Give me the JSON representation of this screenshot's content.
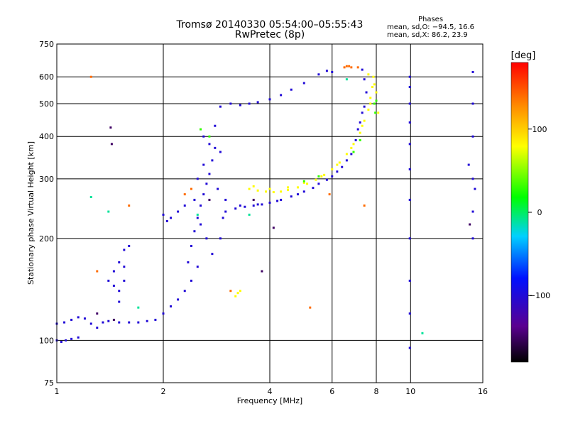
{
  "chart_data": {
    "type": "scatter",
    "title": "Tromsø 20140330 05:54:00–05:55:43",
    "subtitle": "RwPretec (8p)",
    "xlabel": "Frequency [MHz]",
    "ylabel": "Stationary phase Virtual Height [km]",
    "x_scale": "log",
    "y_scale": "log",
    "xlim": [
      1,
      16
    ],
    "ylim": [
      75,
      750
    ],
    "x_ticks": [
      1,
      2,
      4,
      6,
      8,
      10,
      16
    ],
    "x_tick_labels": [
      "1",
      "2",
      "4",
      "6",
      "8",
      "10",
      "16"
    ],
    "y_ticks": [
      75,
      100,
      200,
      300,
      400,
      500,
      600,
      750
    ],
    "y_tick_labels": [
      "75",
      "100",
      "200",
      "300",
      "400",
      "500",
      "600",
      "750"
    ],
    "grid": true,
    "phase_stats": {
      "heading": "Phases",
      "line_o": "mean, sd,O: −94.5, 16.6",
      "line_x": "mean, sd,X:  86.2, 23.9"
    },
    "colorbar": {
      "label": "[deg]",
      "range": [
        -180,
        180
      ],
      "ticks": [
        100,
        0,
        -100
      ],
      "tick_labels": [
        "100",
        "0",
        "−100"
      ]
    },
    "series": [
      {
        "phase_deg": -100,
        "points": [
          [
            1.0,
            100
          ],
          [
            1.03,
            99
          ],
          [
            1.06,
            100
          ],
          [
            1.1,
            101
          ],
          [
            1.15,
            102
          ],
          [
            1.0,
            112
          ],
          [
            1.05,
            113
          ],
          [
            1.1,
            115
          ],
          [
            1.15,
            117
          ],
          [
            1.2,
            116
          ],
          [
            1.25,
            112
          ],
          [
            1.3,
            109
          ],
          [
            1.35,
            113
          ],
          [
            1.4,
            114
          ],
          [
            1.5,
            113
          ],
          [
            1.6,
            113
          ],
          [
            1.7,
            113
          ],
          [
            1.8,
            114
          ],
          [
            1.9,
            115
          ],
          [
            2.0,
            120
          ],
          [
            2.1,
            126
          ],
          [
            2.2,
            132
          ],
          [
            2.3,
            140
          ],
          [
            2.4,
            150
          ],
          [
            2.5,
            165
          ],
          [
            2.35,
            170
          ],
          [
            2.4,
            190
          ],
          [
            2.45,
            210
          ],
          [
            2.5,
            230
          ],
          [
            2.55,
            250
          ],
          [
            2.6,
            270
          ],
          [
            2.65,
            290
          ],
          [
            2.7,
            310
          ],
          [
            2.75,
            340
          ],
          [
            2.8,
            370
          ],
          [
            2.5,
            300
          ],
          [
            2.6,
            330
          ],
          [
            2.7,
            380
          ],
          [
            2.6,
            400
          ],
          [
            2.45,
            260
          ],
          [
            2.55,
            220
          ],
          [
            2.65,
            200
          ],
          [
            2.75,
            180
          ],
          [
            2.9,
            200
          ],
          [
            2.95,
            230
          ],
          [
            3.0,
            260
          ],
          [
            2.85,
            280
          ],
          [
            2.9,
            360
          ],
          [
            2.8,
            430
          ],
          [
            2.3,
            250
          ],
          [
            2.2,
            240
          ],
          [
            2.1,
            230
          ],
          [
            2.0,
            235
          ],
          [
            2.05,
            225
          ],
          [
            1.4,
            150
          ],
          [
            1.45,
            160
          ],
          [
            1.5,
            170
          ],
          [
            1.55,
            165
          ],
          [
            1.5,
            140
          ],
          [
            1.55,
            150
          ],
          [
            1.45,
            145
          ],
          [
            1.5,
            130
          ],
          [
            1.55,
            185
          ],
          [
            1.6,
            190
          ],
          [
            2.9,
            490
          ],
          [
            3.1,
            500
          ],
          [
            3.3,
            495
          ],
          [
            3.5,
            500
          ],
          [
            3.7,
            505
          ],
          [
            4.0,
            515
          ],
          [
            4.3,
            530
          ],
          [
            4.6,
            550
          ],
          [
            5.0,
            575
          ],
          [
            5.5,
            610
          ],
          [
            5.8,
            625
          ],
          [
            6.0,
            620
          ],
          [
            3.0,
            240
          ],
          [
            3.2,
            245
          ],
          [
            3.4,
            248
          ],
          [
            3.6,
            250
          ],
          [
            3.8,
            252
          ],
          [
            4.0,
            255
          ],
          [
            4.3,
            260
          ],
          [
            4.6,
            266
          ],
          [
            5.0,
            275
          ],
          [
            5.5,
            290
          ],
          [
            6.0,
            305
          ],
          [
            6.4,
            325
          ],
          [
            6.8,
            355
          ],
          [
            7.0,
            390
          ],
          [
            7.2,
            440
          ],
          [
            7.4,
            490
          ],
          [
            7.5,
            540
          ],
          [
            7.4,
            590
          ],
          [
            7.3,
            630
          ],
          [
            3.3,
            250
          ],
          [
            3.7,
            252
          ],
          [
            4.2,
            258
          ],
          [
            4.8,
            270
          ],
          [
            5.3,
            282
          ],
          [
            5.8,
            298
          ],
          [
            6.2,
            315
          ],
          [
            6.6,
            340
          ],
          [
            7.1,
            420
          ],
          [
            7.3,
            470
          ],
          [
            9.95,
            600
          ],
          [
            9.95,
            560
          ],
          [
            9.95,
            500
          ],
          [
            9.95,
            440
          ],
          [
            9.95,
            380
          ],
          [
            9.95,
            320
          ],
          [
            9.95,
            260
          ],
          [
            9.95,
            200
          ],
          [
            9.95,
            150
          ],
          [
            9.95,
            120
          ],
          [
            9.95,
            95
          ],
          [
            15.0,
            620
          ],
          [
            15.0,
            500
          ],
          [
            15.0,
            400
          ],
          [
            15.0,
            300
          ],
          [
            15.0,
            240
          ],
          [
            15.0,
            200
          ],
          [
            15.2,
            280
          ],
          [
            14.6,
            330
          ]
        ]
      },
      {
        "phase_deg": 80,
        "points": [
          [
            3.5,
            280
          ],
          [
            3.7,
            277
          ],
          [
            3.9,
            275
          ],
          [
            4.1,
            274
          ],
          [
            4.3,
            275
          ],
          [
            4.5,
            278
          ],
          [
            4.8,
            283
          ],
          [
            5.1,
            290
          ],
          [
            5.4,
            298
          ],
          [
            5.7,
            308
          ],
          [
            6.0,
            320
          ],
          [
            6.3,
            335
          ],
          [
            6.6,
            355
          ],
          [
            6.9,
            380
          ],
          [
            7.2,
            410
          ],
          [
            7.4,
            445
          ],
          [
            7.6,
            480
          ],
          [
            7.7,
            520
          ],
          [
            7.8,
            560
          ],
          [
            7.85,
            600
          ],
          [
            7.6,
            610
          ],
          [
            3.6,
            285
          ],
          [
            4.0,
            280
          ],
          [
            4.5,
            283
          ],
          [
            5.0,
            292
          ],
          [
            5.6,
            305
          ],
          [
            6.2,
            330
          ],
          [
            6.8,
            370
          ],
          [
            7.3,
            430
          ],
          [
            7.7,
            500
          ],
          [
            8.1,
            470
          ],
          [
            8.0,
            540
          ],
          [
            7.9,
            570
          ],
          [
            3.2,
            135
          ],
          [
            3.25,
            138
          ],
          [
            3.3,
            140
          ]
        ]
      },
      {
        "phase_deg": 140,
        "points": [
          [
            6.5,
            640
          ],
          [
            6.6,
            645
          ],
          [
            6.7,
            645
          ],
          [
            6.8,
            640
          ],
          [
            7.1,
            640
          ],
          [
            1.25,
            600
          ],
          [
            1.3,
            160
          ],
          [
            1.6,
            250
          ],
          [
            2.3,
            270
          ],
          [
            2.4,
            280
          ],
          [
            3.1,
            140
          ],
          [
            5.2,
            125
          ],
          [
            5.9,
            270
          ],
          [
            7.4,
            250
          ]
        ]
      },
      {
        "phase_deg": 30,
        "points": [
          [
            7.9,
            500
          ],
          [
            8.0,
            510
          ],
          [
            7.95,
            470
          ],
          [
            7.2,
            390
          ],
          [
            6.9,
            360
          ],
          [
            5.0,
            295
          ],
          [
            5.5,
            305
          ],
          [
            2.55,
            420
          ],
          [
            2.7,
            400
          ]
        ]
      },
      {
        "phase_deg": -10,
        "points": [
          [
            1.7,
            125
          ],
          [
            1.4,
            240
          ],
          [
            2.5,
            235
          ],
          [
            3.5,
            235
          ],
          [
            6.6,
            590
          ],
          [
            10.8,
            105
          ],
          [
            1.25,
            265
          ]
        ]
      },
      {
        "phase_deg": -150,
        "points": [
          [
            1.3,
            120
          ],
          [
            1.45,
            115
          ],
          [
            2.7,
            260
          ],
          [
            3.6,
            260
          ],
          [
            4.1,
            215
          ],
          [
            3.8,
            160
          ],
          [
            1.42,
            425
          ],
          [
            1.43,
            380
          ],
          [
            14.7,
            220
          ]
        ]
      }
    ]
  }
}
